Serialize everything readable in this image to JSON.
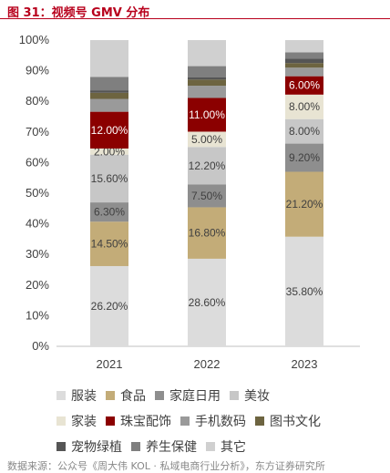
{
  "figure": {
    "title": "图 31：视频号 GMV 分布",
    "source": "数据来源：公众号《周大伟 KOL · 私域电商行业分析》，东方证券研究所"
  },
  "colors": {
    "title": "#b8001c"
  },
  "chart_data": {
    "type": "bar",
    "stacked": true,
    "percent_stacked": true,
    "categories": [
      "2021",
      "2022",
      "2023"
    ],
    "ylim": [
      0,
      100
    ],
    "yticks": [
      "0%",
      "10%",
      "20%",
      "30%",
      "40%",
      "50%",
      "60%",
      "70%",
      "80%",
      "90%",
      "100%"
    ],
    "grid": false,
    "legend_position": "bottom",
    "series": [
      {
        "name": "服装",
        "color": "#dcdcdc",
        "label_color": "#404040",
        "values": [
          26.2,
          28.6,
          35.8
        ],
        "labels": [
          "26.20%",
          "28.60%",
          "35.80%"
        ]
      },
      {
        "name": "食品",
        "color": "#c3ac78",
        "label_color": "#404040",
        "values": [
          14.5,
          16.8,
          21.2
        ],
        "labels": [
          "14.50%",
          "16.80%",
          "21.20%"
        ]
      },
      {
        "name": "家庭日用",
        "color": "#8e8e8e",
        "label_color": "#404040",
        "values": [
          6.3,
          7.5,
          9.2
        ],
        "labels": [
          "6.30%",
          "7.50%",
          "9.20%"
        ]
      },
      {
        "name": "美妆",
        "color": "#c7c7c7",
        "label_color": "#404040",
        "values": [
          15.6,
          12.2,
          8.0
        ],
        "labels": [
          "15.60%",
          "12.20%",
          "8.00%"
        ]
      },
      {
        "name": "家装",
        "color": "#e8e4d3",
        "label_color": "#404040",
        "values": [
          2.0,
          5.0,
          8.0
        ],
        "labels": [
          "2.00%",
          "5.00%",
          "8.00%"
        ]
      },
      {
        "name": "珠宝配饰",
        "color": "#8b0000",
        "label_color": "#ffffff",
        "values": [
          12.0,
          11.0,
          6.0
        ],
        "labels": [
          "12.00%",
          "11.00%",
          "6.00%"
        ]
      },
      {
        "name": "手机数码",
        "color": "#9a9a9a",
        "label_color": "",
        "values": [
          4.2,
          4.0,
          2.8
        ],
        "labels": [
          "",
          "",
          ""
        ]
      },
      {
        "name": "图书文化",
        "color": "#6d6440",
        "label_color": "",
        "values": [
          2.0,
          2.0,
          1.5
        ],
        "labels": [
          "",
          "",
          ""
        ]
      },
      {
        "name": "宠物绿植",
        "color": "#555555",
        "label_color": "",
        "values": [
          0.8,
          0.7,
          1.5
        ],
        "labels": [
          "",
          "",
          ""
        ]
      },
      {
        "name": "养生保健",
        "color": "#7f7f7f",
        "label_color": "",
        "values": [
          4.4,
          3.7,
          2.0
        ],
        "labels": [
          "",
          "",
          ""
        ]
      },
      {
        "name": "其它",
        "color": "#d0d0d0",
        "label_color": "",
        "values": [
          12.0,
          8.5,
          4.0
        ],
        "labels": [
          "",
          "",
          ""
        ]
      }
    ]
  }
}
